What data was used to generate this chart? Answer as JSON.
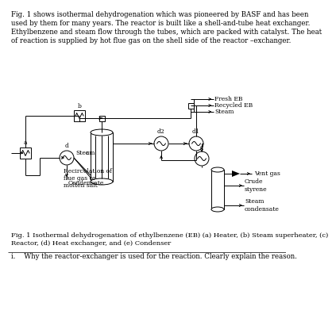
{
  "bg_color": "#ffffff",
  "line_color": "#000000",
  "para_text": "Fig. 1 shows isothermal dehydrogenation which was pioneered by BASF and has been\nused by them for many years. The reactor is built like a shell-and-tube heat exchanger.\nEthylbenzene and steam flow through the tubes, which are packed with catalyst. The heat\nof reaction is supplied by hot flue gas on the shell side of the reactor –exchanger.",
  "caption_text": "Fig. 1 Isothermal dehydrogenation of ethylbenzene (EB) (a) Heater, (b) Steam superheater, (c)\nReactor, (d) Heat exchanger, and (e) Condenser",
  "question_text": "i.    Why the reactor-exchanger is used for the reaction. Clearly explain the reason.",
  "font_size_para": 6.2,
  "font_size_caption": 6.0,
  "font_size_question": 6.2,
  "font_size_label": 5.5,
  "font_size_small": 5.2
}
